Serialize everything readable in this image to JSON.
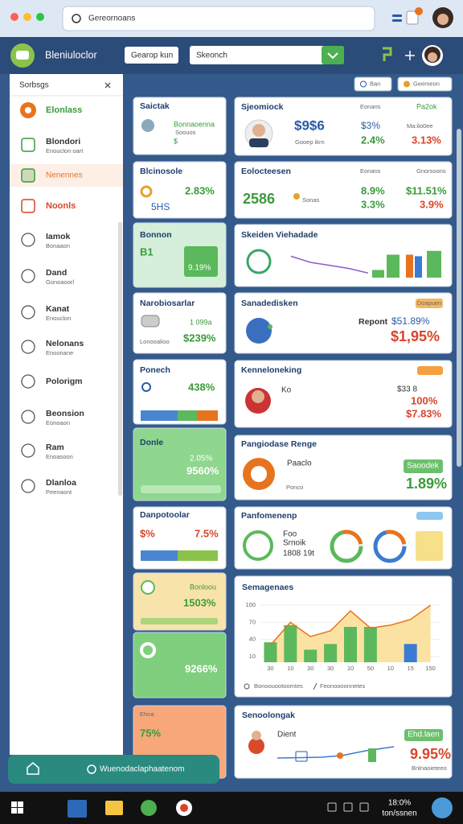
{
  "window": {
    "search": "Gereornoans"
  },
  "header": {
    "title": "Bleniuloclor",
    "button": "Gearop kun",
    "search": "Skeonch"
  },
  "toolbar": [
    "Ban",
    "Geemeon"
  ],
  "sidebar": {
    "title": "Sorbsgs",
    "items": [
      {
        "label": "Elonlass"
      },
      {
        "label": "Blondori",
        "sub": "Enouclon oart"
      },
      {
        "label": "Nenennes"
      },
      {
        "label": "Noonls"
      },
      {
        "label": "Iamok",
        "sub": "Bonaaon"
      },
      {
        "label": "Dand",
        "sub": "Gonoaoorl"
      },
      {
        "label": "Kanat",
        "sub": "Enouclon"
      },
      {
        "label": "Nelonans",
        "sub": "Enoonane"
      },
      {
        "label": "Polorigm"
      },
      {
        "label": "Beonsion",
        "sub": "Eonoaon"
      },
      {
        "label": "Ram",
        "sub": "Enoasoon"
      },
      {
        "label": "Dlanloa",
        "sub": "Peenaont"
      }
    ]
  },
  "left_cards": [
    {
      "title": "Saictak",
      "lines": [
        "Bonnaoenna",
        "Soouos",
        "$"
      ]
    },
    {
      "title": "Blcinosole",
      "lines": [
        "2.83%",
        "5HS"
      ]
    },
    {
      "title": "Bonnon",
      "lines": [
        "B1",
        "9.19%"
      ]
    },
    {
      "title": "Narobiosarlar",
      "lines": [
        "1 099a",
        "$239%",
        "Lonooalioo"
      ]
    },
    {
      "title": "Ponech",
      "lines": [
        "438%"
      ]
    },
    {
      "title": "Donle",
      "lines": [
        "2.05%",
        "9560%"
      ]
    },
    {
      "title": "Danpotoolar",
      "lines": [
        "$%",
        "7.5%"
      ]
    },
    {
      "title": "Bonloou",
      "lines": [
        "1503%"
      ]
    },
    {
      "lines": [
        "9266%"
      ]
    },
    {
      "title": "Ehna",
      "lines": [
        "75%"
      ]
    }
  ],
  "right_cards": [
    {
      "title": "Sjeomiock",
      "label": "Eonans",
      "tag": "Pa2ok",
      "value": "$9$6",
      "caption": "Gooep ikrn",
      "stats": [
        "$3%",
        "2.4%",
        "Ma:ilo0ee",
        "3.13%"
      ]
    },
    {
      "title": "Eolocteesen",
      "label": "Eonans",
      "tag": "Gnorsoons",
      "value": "2586",
      "caption": "Sonas",
      "stats": [
        "8.9%",
        "3.3%",
        "$11.51%",
        "3.9%"
      ]
    },
    {
      "title": "Skeiden Viehadade",
      "chart": {
        "bars": [
          10,
          30,
          30,
          28,
          35
        ],
        "colors": [
          "#5cb85c",
          "#5cb85c",
          "#e8731e",
          "#3b7bd4",
          "#5cb85c"
        ],
        "line": [
          28,
          20,
          16,
          12,
          6
        ],
        "line_color": "#8a5cc8",
        "ylim": [
          0,
          40
        ]
      }
    },
    {
      "title": "Sanadedisken",
      "tag": "Doapuen",
      "label": "Repont",
      "stats": [
        "$51.89%",
        "$1,95%"
      ]
    },
    {
      "title": "Kenneloneking",
      "label": "Ko",
      "stats": [
        "$33 8",
        "100%",
        "$7.83%"
      ]
    },
    {
      "title": "Pangiodase Renge",
      "label": "Paaclo",
      "caption": "Ponco",
      "tag": "Saoodek",
      "value": "1.89%"
    },
    {
      "title": "Panfomenenp",
      "lines": [
        "Foo",
        "Srnoik",
        "1808 19t"
      ]
    },
    {
      "title": "Semagenaes",
      "chart": {
        "categories": [
          "30",
          "10",
          "30",
          "30",
          "10",
          "50",
          "10",
          "15",
          "150"
        ],
        "bars": [
          35,
          65,
          22,
          32,
          62,
          62,
          null,
          32,
          null
        ],
        "colors": [
          "#5cb85c",
          "#5cb85c",
          "#5cb85c",
          "#5cb85c",
          "#5cb85c",
          "#5cb85c",
          "#5cb85c",
          "#3b7bd4",
          "#5cb85c"
        ],
        "line": [
          30,
          70,
          45,
          55,
          90,
          60,
          65,
          75,
          100
        ],
        "line_color": "#e8731e",
        "area_color": "#fbe2a2",
        "ylim": [
          0,
          110
        ],
        "yticks": [
          10,
          40,
          70,
          100
        ],
        "legend": [
          "Bonoouootoomtes",
          "Feonoooonnetes"
        ]
      }
    },
    {
      "title": "Senoolongak",
      "label": "Dient",
      "tag": "Ehd.laen",
      "value": "9.95%",
      "caption": "Bnlnaoieteeo"
    }
  ],
  "footer": {
    "text": "Wuenodaclaphaatenom"
  },
  "taskbar": {
    "time": "18:0%",
    "date": "ton/ssnen"
  }
}
